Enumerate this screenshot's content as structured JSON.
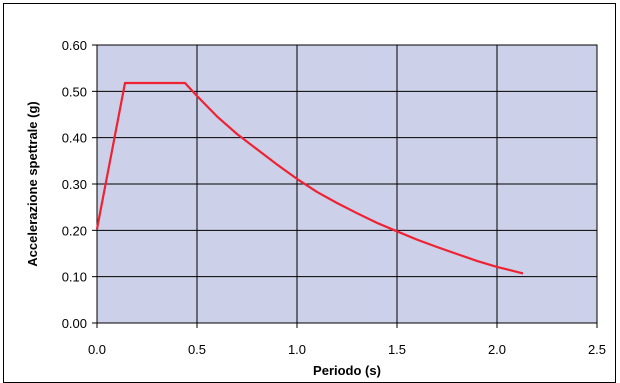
{
  "chart_data": {
    "type": "line",
    "title": "",
    "xlabel": "Periodo (s)",
    "ylabel": "Accelerazione spettrale (g)",
    "xlim": [
      0,
      2.5
    ],
    "ylim": [
      0,
      0.6
    ],
    "x_ticks": [
      "0.0",
      "0.5",
      "1.0",
      "1.5",
      "2.0",
      "2.5"
    ],
    "y_ticks": [
      "0.00",
      "0.10",
      "0.20",
      "0.30",
      "0.40",
      "0.50",
      "0.60"
    ],
    "grid": true,
    "legend": "none",
    "colors": {
      "plot_bg": "#ccd0e8",
      "grid": "#000000",
      "line": "#ee2233"
    },
    "series": [
      {
        "x": [
          0.0,
          0.14,
          0.44,
          0.5,
          0.6,
          0.7,
          0.8,
          0.9,
          1.0,
          1.1,
          1.2,
          1.3,
          1.4,
          1.5,
          1.6,
          1.7,
          1.8,
          1.9,
          2.0,
          2.13
        ],
        "values": [
          0.203,
          0.518,
          0.518,
          0.49,
          0.446,
          0.408,
          0.375,
          0.342,
          0.311,
          0.283,
          0.259,
          0.237,
          0.216,
          0.198,
          0.18,
          0.164,
          0.149,
          0.134,
          0.121,
          0.107
        ]
      }
    ]
  }
}
